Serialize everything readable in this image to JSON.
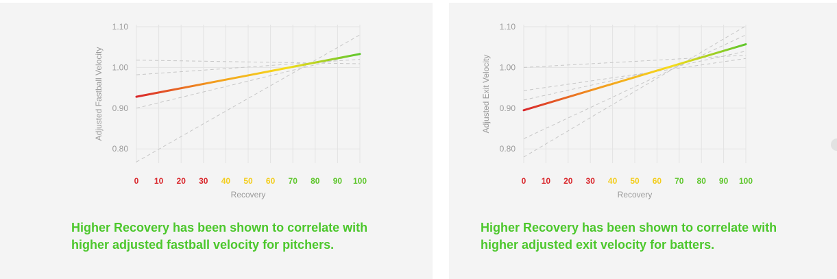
{
  "chart_data": [
    {
      "type": "line",
      "ylabel": "Adjusted Fastball Velocity",
      "xlabel": "Recovery",
      "x_ticks": [
        0,
        10,
        20,
        30,
        40,
        50,
        60,
        70,
        80,
        90,
        100
      ],
      "y_ticks": [
        "1.10",
        "1.00",
        "0.90",
        "0.80"
      ],
      "xlim": [
        0,
        100
      ],
      "ylim": [
        0.765,
        1.105
      ],
      "grid": true,
      "main_line": {
        "x": [
          0,
          100
        ],
        "y": [
          0.928,
          1.033
        ],
        "gradient": [
          "#d9262b",
          "#f29a1f",
          "#f6dc1c",
          "#5ec62c"
        ]
      },
      "reference_lines": [
        {
          "x": [
            0,
            100
          ],
          "y": [
            0.768,
            1.08
          ]
        },
        {
          "x": [
            0,
            100
          ],
          "y": [
            0.9,
            1.033
          ]
        },
        {
          "x": [
            0,
            100
          ],
          "y": [
            0.982,
            1.02
          ]
        },
        {
          "x": [
            0,
            100
          ],
          "y": [
            1.018,
            1.009
          ]
        }
      ],
      "caption": "Higher Recovery has been shown to correlate with higher adjusted fastball velocity for pitchers."
    },
    {
      "type": "line",
      "ylabel": "Adjusted Exit Velocity",
      "xlabel": "Recovery",
      "x_ticks": [
        0,
        10,
        20,
        30,
        40,
        50,
        60,
        70,
        80,
        90,
        100
      ],
      "y_ticks": [
        "1.10",
        "1.00",
        "0.90",
        "0.80"
      ],
      "xlim": [
        0,
        100
      ],
      "ylim": [
        0.765,
        1.105
      ],
      "grid": true,
      "main_line": {
        "x": [
          0,
          100
        ],
        "y": [
          0.895,
          1.057
        ],
        "gradient": [
          "#d9262b",
          "#f29a1f",
          "#f6dc1c",
          "#5ec62c"
        ]
      },
      "reference_lines": [
        {
          "x": [
            0,
            100
          ],
          "y": [
            0.78,
            1.102
          ]
        },
        {
          "x": [
            0,
            100
          ],
          "y": [
            0.825,
            1.08
          ]
        },
        {
          "x": [
            0,
            100
          ],
          "y": [
            0.92,
            1.04
          ]
        },
        {
          "x": [
            0,
            100
          ],
          "y": [
            0.943,
            1.022
          ]
        },
        {
          "x": [
            0,
            100
          ],
          "y": [
            1.0,
            1.03
          ]
        }
      ],
      "caption": "Higher Recovery has been shown to correlate with higher adjusted exit velocity for batters."
    }
  ],
  "colors": {
    "tick_red": "#d9262b",
    "tick_orange": "#ef7d22",
    "tick_yellow": "#f3cd1d",
    "tick_green": "#5ec62c",
    "caption_green": "#4cc72c"
  }
}
